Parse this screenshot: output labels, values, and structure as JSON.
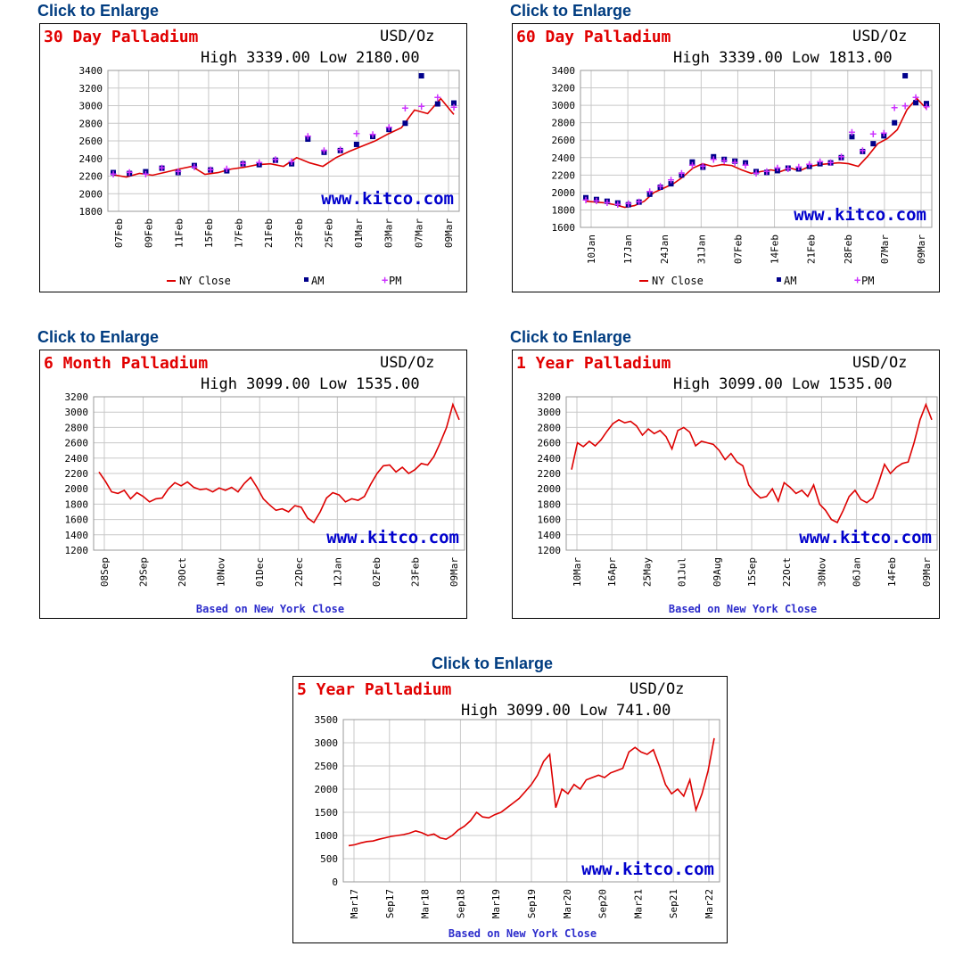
{
  "link_text": "Click to Enlarge",
  "watermark": "www.kitco.com",
  "legend": {
    "ny": "NY Close",
    "am": "AM",
    "pm": "PM"
  },
  "footer_note": "Based on New York Close",
  "colors": {
    "line": "#dd0000",
    "am": "#00008b",
    "pm": "#cc33ff",
    "title": "#e10000",
    "link": "#003c80",
    "watermark": "#0000cc",
    "grid": "#c8c8c8"
  },
  "chart_data": [
    {
      "id": "c30",
      "type": "line",
      "title": "30 Day Palladium",
      "unit": "USD/Oz",
      "high_low": "High 3339.00 Low 2180.00",
      "ylim": [
        1800,
        3400
      ],
      "yticks": [
        1800,
        2000,
        2200,
        2400,
        2600,
        2800,
        3000,
        3200,
        3400
      ],
      "x_labels": [
        "07Feb",
        "09Feb",
        "11Feb",
        "15Feb",
        "17Feb",
        "21Feb",
        "23Feb",
        "25Feb",
        "01Mar",
        "03Mar",
        "07Mar",
        "09Mar"
      ],
      "legend": true,
      "series": [
        {
          "name": "NY Close",
          "kind": "line",
          "values": [
            2215,
            2190,
            2230,
            2210,
            2245,
            2280,
            2310,
            2220,
            2240,
            2280,
            2300,
            2330,
            2340,
            2310,
            2410,
            2350,
            2310,
            2410,
            2480,
            2540,
            2600,
            2680,
            2750,
            2950,
            2910,
            3080,
            2900
          ]
        },
        {
          "name": "AM",
          "kind": "marker",
          "values": [
            2240,
            2230,
            2250,
            2290,
            2240,
            2320,
            2270,
            2260,
            2340,
            2330,
            2380,
            2340,
            2620,
            2470,
            2490,
            2560,
            2650,
            2730,
            2800,
            3339,
            3020,
            3030
          ]
        },
        {
          "name": "PM",
          "kind": "marker",
          "values": [
            2230,
            2250,
            2230,
            2300,
            2260,
            2310,
            2280,
            2290,
            2350,
            2360,
            2400,
            2370,
            2660,
            2500,
            2510,
            2690,
            2680,
            2760,
            2980,
            3000,
            3100,
            2990
          ]
        }
      ]
    },
    {
      "id": "c60",
      "type": "line",
      "title": "60 Day Palladium",
      "unit": "USD/Oz",
      "high_low": "High 3339.00 Low 1813.00",
      "ylim": [
        1600,
        3400
      ],
      "yticks": [
        1600,
        1800,
        2000,
        2200,
        2400,
        2600,
        2800,
        3000,
        3200,
        3400
      ],
      "x_labels": [
        "10Jan",
        "17Jan",
        "24Jan",
        "31Jan",
        "07Feb",
        "14Feb",
        "21Feb",
        "28Feb",
        "07Mar",
        "09Mar"
      ],
      "legend": true,
      "series": [
        {
          "name": "NY Close",
          "kind": "line",
          "values": [
            1900,
            1890,
            1880,
            1860,
            1830,
            1850,
            1900,
            2000,
            2050,
            2100,
            2180,
            2280,
            2330,
            2300,
            2320,
            2310,
            2260,
            2220,
            2240,
            2260,
            2240,
            2280,
            2250,
            2300,
            2320,
            2330,
            2340,
            2330,
            2300,
            2420,
            2560,
            2620,
            2720,
            2950,
            3080,
            2960
          ]
        },
        {
          "name": "AM",
          "kind": "marker",
          "values": [
            1940,
            1920,
            1900,
            1880,
            1860,
            1890,
            1980,
            2060,
            2100,
            2200,
            2350,
            2290,
            2410,
            2380,
            2360,
            2340,
            2240,
            2230,
            2250,
            2280,
            2270,
            2300,
            2330,
            2340,
            2400,
            2640,
            2470,
            2560,
            2650,
            2800,
            3339,
            3030,
            3020
          ]
        },
        {
          "name": "PM",
          "kind": "marker",
          "values": [
            1920,
            1910,
            1890,
            1870,
            1880,
            1900,
            2020,
            2080,
            2150,
            2230,
            2320,
            2310,
            2390,
            2370,
            2350,
            2320,
            2230,
            2250,
            2290,
            2280,
            2300,
            2330,
            2360,
            2350,
            2420,
            2700,
            2490,
            2680,
            2690,
            2980,
            3000,
            3100,
            2990
          ]
        }
      ]
    },
    {
      "id": "c6m",
      "type": "line",
      "title": "6 Month Palladium",
      "unit": "USD/Oz",
      "high_low": "High 3099.00 Low 1535.00",
      "ylim": [
        1200,
        3200
      ],
      "yticks": [
        1200,
        1400,
        1600,
        1800,
        2000,
        2200,
        2400,
        2600,
        2800,
        3000,
        3200
      ],
      "x_labels": [
        "08Sep",
        "29Sep",
        "20Oct",
        "10Nov",
        "01Dec",
        "22Dec",
        "12Jan",
        "02Feb",
        "23Feb",
        "09Mar"
      ],
      "note": "Based on New York Close",
      "series": [
        {
          "name": "NY Close",
          "kind": "line",
          "values": [
            2220,
            2100,
            1960,
            1940,
            1980,
            1870,
            1950,
            1900,
            1830,
            1870,
            1880,
            2000,
            2080,
            2040,
            2090,
            2020,
            1990,
            2000,
            1960,
            2010,
            1980,
            2020,
            1960,
            2070,
            2150,
            2020,
            1870,
            1790,
            1720,
            1740,
            1700,
            1780,
            1760,
            1620,
            1560,
            1700,
            1880,
            1950,
            1920,
            1830,
            1870,
            1850,
            1900,
            2060,
            2200,
            2300,
            2310,
            2220,
            2280,
            2200,
            2250,
            2330,
            2310,
            2420,
            2600,
            2800,
            3099,
            2900
          ]
        }
      ]
    },
    {
      "id": "c1y",
      "type": "line",
      "title": "1 Year Palladium",
      "unit": "USD/Oz",
      "high_low": "High 3099.00 Low 1535.00",
      "ylim": [
        1200,
        3200
      ],
      "yticks": [
        1200,
        1400,
        1600,
        1800,
        2000,
        2200,
        2400,
        2600,
        2800,
        3000,
        3200
      ],
      "x_labels": [
        "10Mar",
        "16Apr",
        "25May",
        "01Jul",
        "09Aug",
        "15Sep",
        "22Oct",
        "30Nov",
        "06Jan",
        "14Feb",
        "09Mar"
      ],
      "note": "Based on New York Close",
      "series": [
        {
          "name": "NY Close",
          "kind": "line",
          "values": [
            2250,
            2600,
            2550,
            2620,
            2560,
            2640,
            2750,
            2850,
            2900,
            2860,
            2880,
            2820,
            2700,
            2780,
            2720,
            2760,
            2680,
            2520,
            2760,
            2800,
            2740,
            2560,
            2620,
            2600,
            2580,
            2500,
            2380,
            2460,
            2350,
            2300,
            2050,
            1950,
            1880,
            1900,
            2000,
            1840,
            2080,
            2020,
            1940,
            1980,
            1900,
            2050,
            1800,
            1720,
            1600,
            1560,
            1720,
            1900,
            1980,
            1860,
            1820,
            1880,
            2080,
            2320,
            2200,
            2280,
            2330,
            2350,
            2600,
            2900,
            3099,
            2900
          ]
        }
      ]
    },
    {
      "id": "c5y",
      "type": "line",
      "title": "5 Year Palladium",
      "unit": "USD/Oz",
      "high_low": "High 3099.00 Low 741.00",
      "ylim": [
        0,
        3500
      ],
      "yticks": [
        0,
        500,
        1000,
        1500,
        2000,
        2500,
        3000,
        3500
      ],
      "x_labels": [
        "Mar17",
        "Sep17",
        "Mar18",
        "Sep18",
        "Mar19",
        "Sep19",
        "Mar20",
        "Sep20",
        "Mar21",
        "Sep21",
        "Mar22"
      ],
      "note": "Based on New York Close",
      "series": [
        {
          "name": "NY Close",
          "kind": "line",
          "values": [
            780,
            800,
            840,
            870,
            880,
            920,
            950,
            980,
            1000,
            1020,
            1050,
            1100,
            1060,
            1000,
            1030,
            950,
            920,
            1000,
            1120,
            1200,
            1320,
            1500,
            1400,
            1380,
            1450,
            1500,
            1600,
            1700,
            1800,
            1950,
            2100,
            2300,
            2600,
            2750,
            1600,
            2000,
            1900,
            2100,
            2000,
            2200,
            2250,
            2300,
            2250,
            2350,
            2400,
            2450,
            2800,
            2900,
            2800,
            2750,
            2850,
            2500,
            2100,
            1900,
            2000,
            1850,
            2200,
            1550,
            1900,
            2400,
            3099
          ]
        }
      ]
    }
  ]
}
